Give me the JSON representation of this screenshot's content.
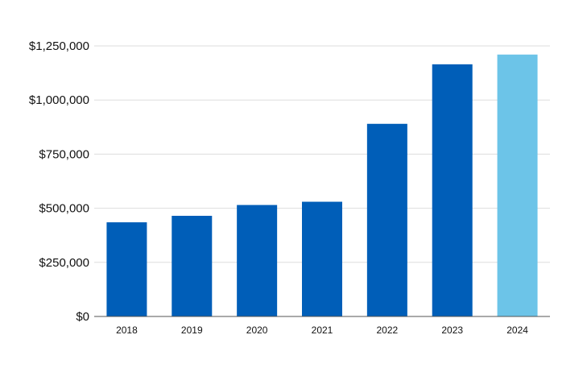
{
  "chart_data": {
    "type": "bar",
    "title": "",
    "xlabel": "",
    "ylabel": "",
    "categories": [
      "2018",
      "2019",
      "2020",
      "2021",
      "2022",
      "2023",
      "2024"
    ],
    "values": [
      435000,
      465000,
      515000,
      530000,
      890000,
      1165000,
      1210000
    ],
    "ylim": [
      0,
      1250000
    ],
    "yticks": [
      0,
      250000,
      500000,
      750000,
      1000000,
      1250000
    ],
    "ytick_labels": [
      "$0",
      "$250,000",
      "$500,000",
      "$750,000",
      "$1,000,000",
      "$1,250,000"
    ],
    "grid": true,
    "legend": "none",
    "colors": {
      "bar": "#005EB8",
      "highlight_bar": "#6CC4E8",
      "highlight_category": "2024",
      "grid": "#dddddd",
      "axis": "#555555"
    }
  }
}
